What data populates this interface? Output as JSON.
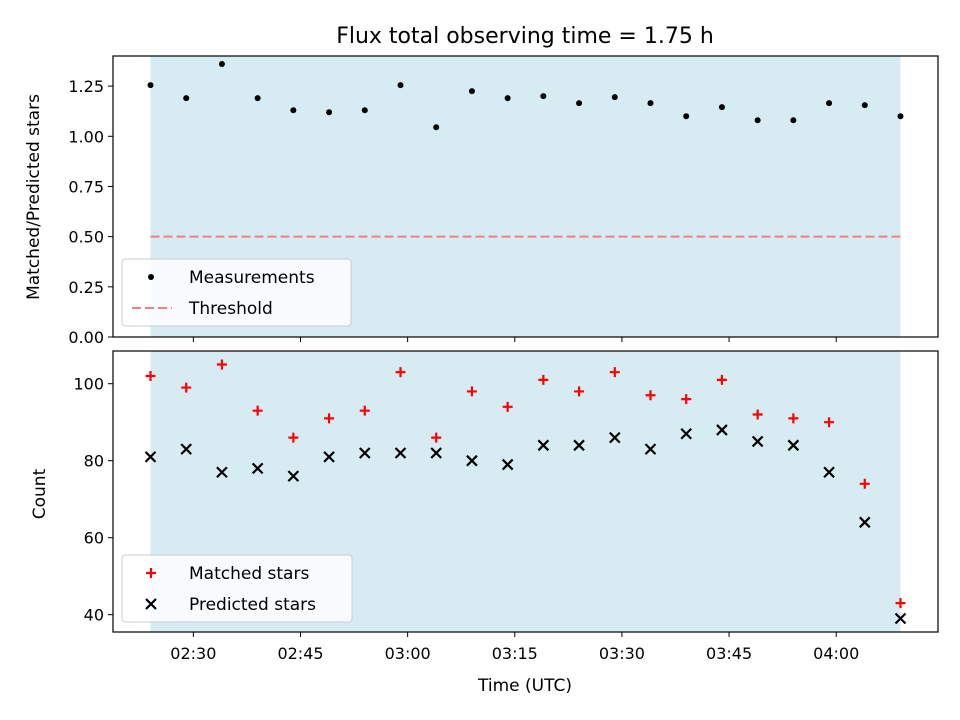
{
  "figure": {
    "title": "Flux total observing time = 1.75 h",
    "xlabel": "Time (UTC)"
  },
  "colors": {
    "shade": "#add8e6",
    "measurement": "#000000",
    "threshold": "#f08080",
    "matched": "#ff0000",
    "predicted": "#000000"
  },
  "chart_data": [
    {
      "type": "scatter",
      "title": "Flux total observing time = 1.75 h",
      "xlabel": "",
      "ylabel": "Matched/Predicted stars",
      "x": [
        "02:24",
        "02:29",
        "02:34",
        "02:39",
        "02:44",
        "02:49",
        "02:54",
        "02:59",
        "03:04",
        "03:09",
        "03:14",
        "03:19",
        "03:24",
        "03:29",
        "03:34",
        "03:39",
        "03:44",
        "03:49",
        "03:54",
        "03:59",
        "04:04",
        "04:09"
      ],
      "series": [
        {
          "name": "Measurements",
          "marker": "dot",
          "values": [
            1.255,
            1.19,
            1.36,
            1.19,
            1.13,
            1.12,
            1.13,
            1.255,
            1.045,
            1.225,
            1.19,
            1.2,
            1.165,
            1.195,
            1.165,
            1.1,
            1.145,
            1.08,
            1.08,
            1.165,
            1.155,
            1.1
          ]
        },
        {
          "name": "Threshold",
          "marker": "dashed-line",
          "values": [
            0.5,
            0.5
          ]
        }
      ],
      "ylim": [
        0,
        1.4
      ],
      "yticks": [
        0.0,
        0.25,
        0.5,
        0.75,
        1.0,
        1.25
      ],
      "yticklabels": [
        "0.00",
        "0.25",
        "0.50",
        "0.75",
        "1.00",
        "1.25"
      ],
      "shaded_span": [
        "02:24",
        "04:09"
      ],
      "legend": "lower-left",
      "grid": false
    },
    {
      "type": "scatter",
      "xlabel": "Time (UTC)",
      "ylabel": "Count",
      "x": [
        "02:24",
        "02:29",
        "02:34",
        "02:39",
        "02:44",
        "02:49",
        "02:54",
        "02:59",
        "03:04",
        "03:09",
        "03:14",
        "03:19",
        "03:24",
        "03:29",
        "03:34",
        "03:39",
        "03:44",
        "03:49",
        "03:54",
        "03:59",
        "04:04",
        "04:09"
      ],
      "series": [
        {
          "name": "Matched stars",
          "marker": "plus",
          "values": [
            102,
            99,
            105,
            93,
            86,
            91,
            93,
            103,
            86,
            98,
            94,
            101,
            98,
            103,
            97,
            96,
            101,
            92,
            91,
            90,
            74,
            43
          ]
        },
        {
          "name": "Predicted stars",
          "marker": "x",
          "values": [
            81,
            83,
            77,
            78,
            76,
            81,
            82,
            82,
            82,
            80,
            79,
            84,
            84,
            86,
            83,
            87,
            88,
            85,
            84,
            77,
            64,
            39
          ]
        }
      ],
      "ylim": [
        35.5,
        108.5
      ],
      "yticks": [
        40,
        60,
        80,
        100
      ],
      "xticklabels": [
        "02:30",
        "02:45",
        "03:00",
        "03:15",
        "03:30",
        "03:45",
        "04:00"
      ],
      "shaded_span": [
        "02:24",
        "04:09"
      ],
      "legend": "lower-left",
      "grid": false
    }
  ]
}
